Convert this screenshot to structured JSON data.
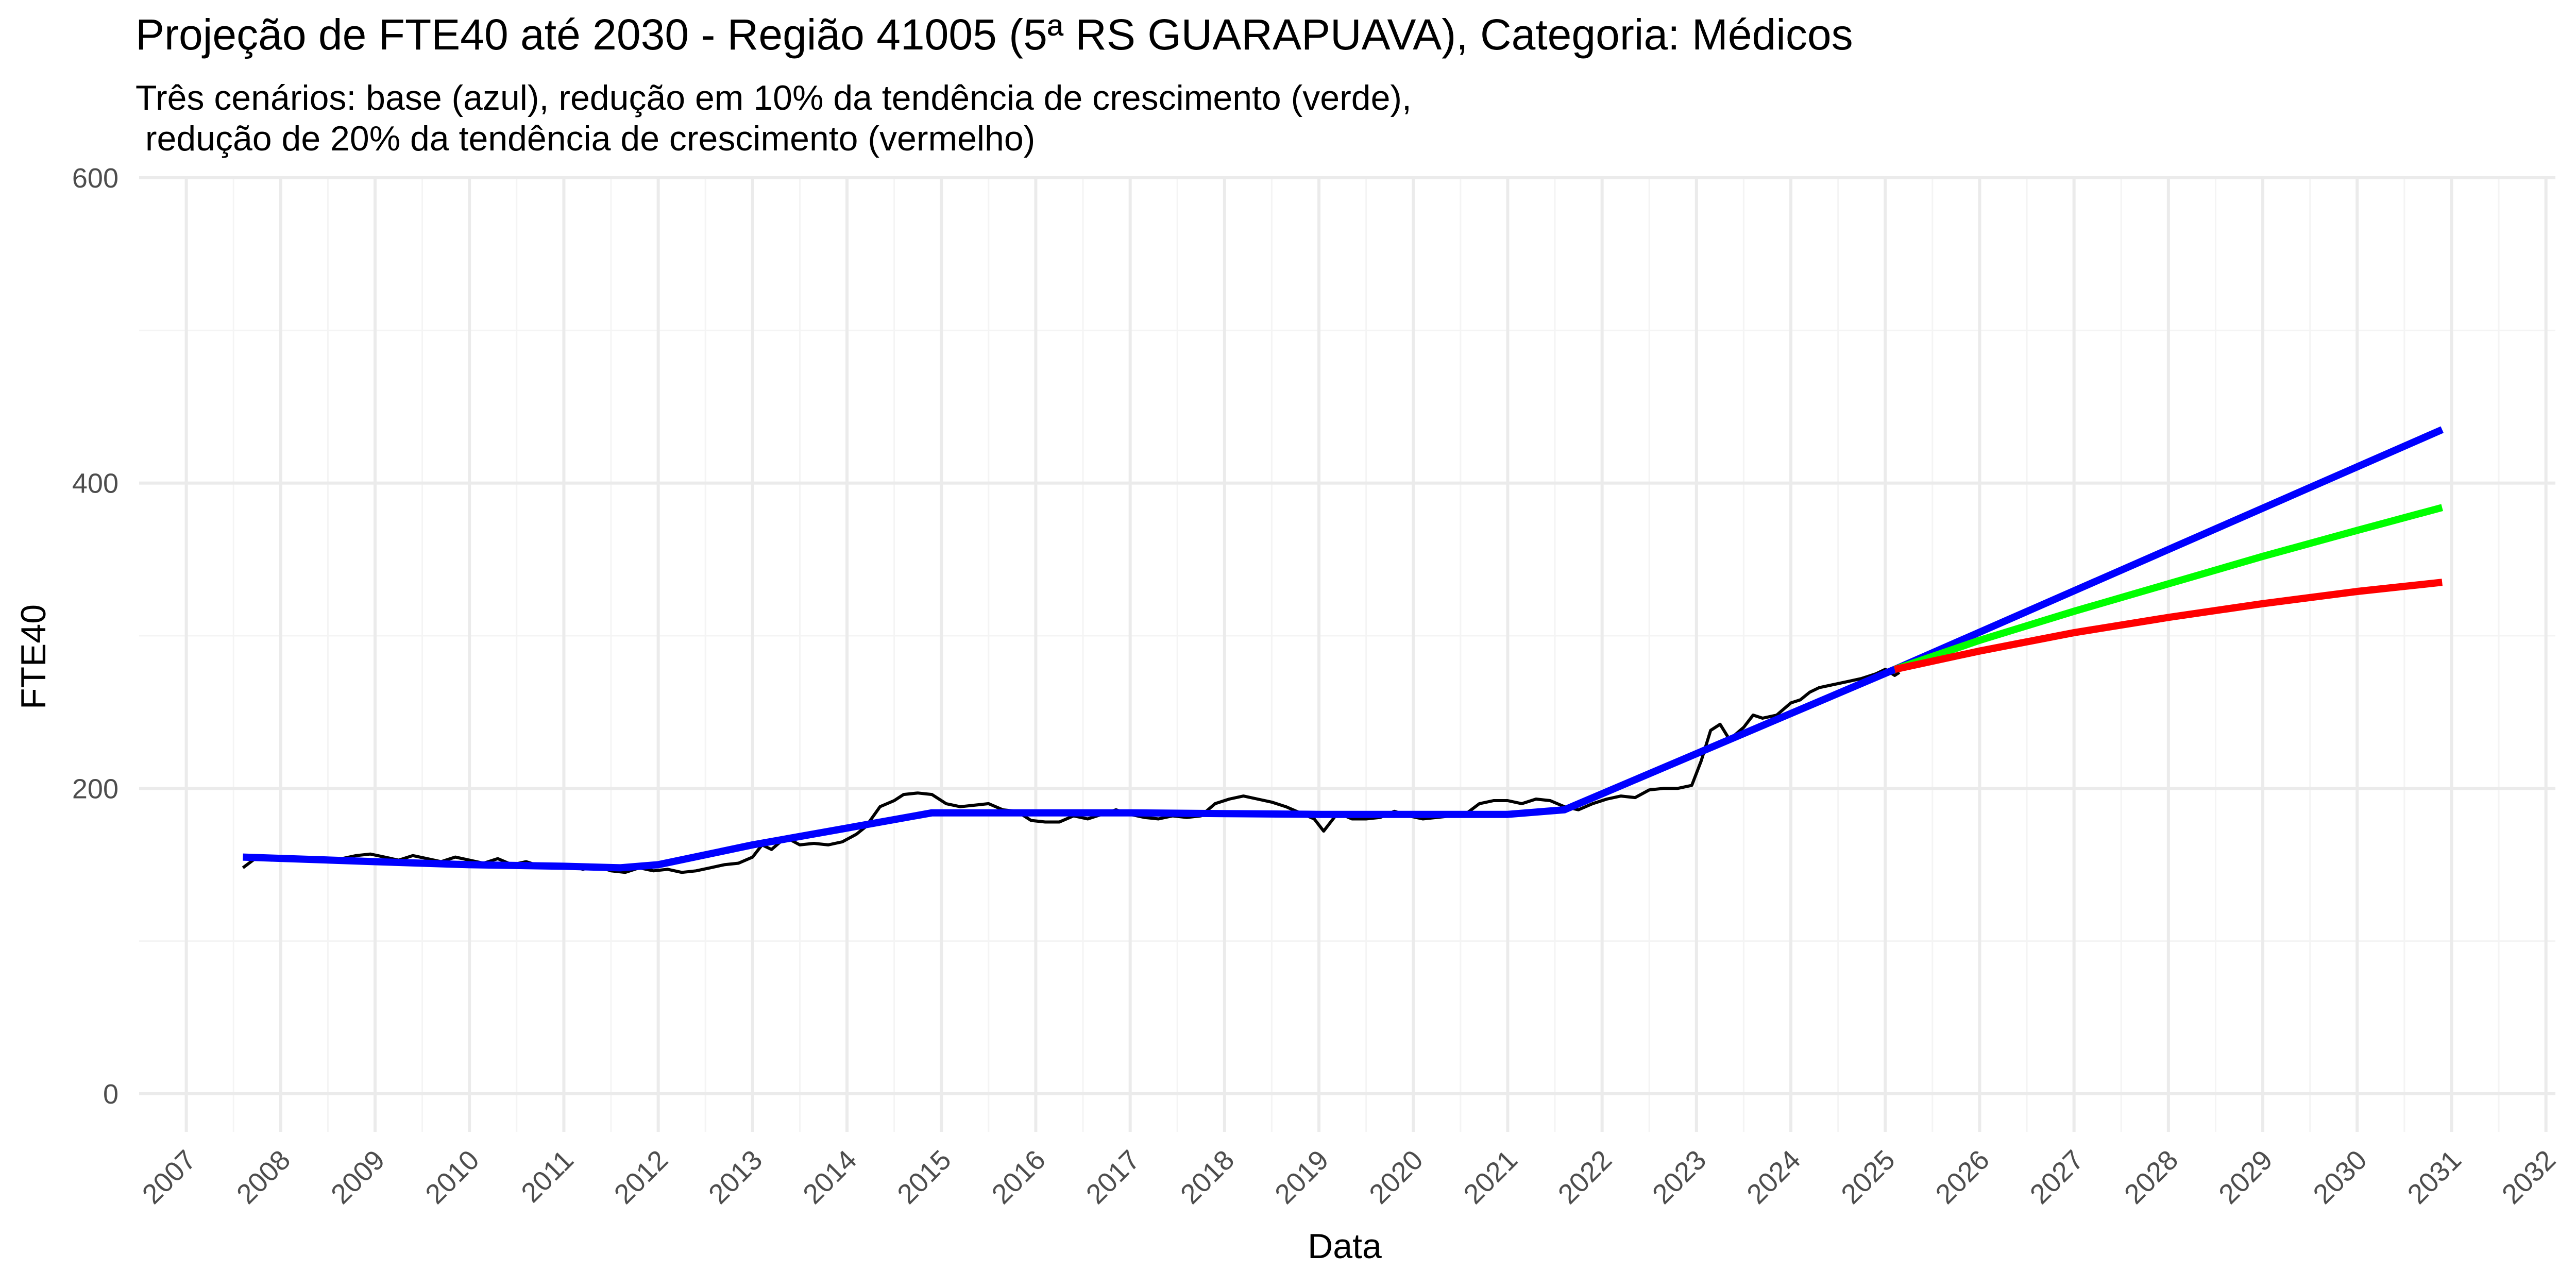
{
  "chart_data": {
    "type": "line",
    "title": "Projeção de FTE40 até 2030 - Região 41005 (5ª RS GUARAPUAVA), Categoria: Médicos",
    "subtitle_lines": [
      "Três cenários: base (azul), redução em 10% da tendência de crescimento (verde),",
      " redução de 20% da tendência de crescimento (vermelho)"
    ],
    "xlabel": "Data",
    "ylabel": "FTE40",
    "xlim": [
      2006.5,
      2032.1
    ],
    "ylim": [
      -25,
      600
    ],
    "y_ticks": [
      0,
      200,
      400,
      600
    ],
    "x_ticks": [
      2007,
      2008,
      2009,
      2010,
      2011,
      2012,
      2013,
      2014,
      2015,
      2016,
      2017,
      2018,
      2019,
      2020,
      2021,
      2022,
      2023,
      2024,
      2025,
      2026,
      2027,
      2028,
      2029,
      2030,
      2031,
      2032
    ],
    "grid": true,
    "legend": "none",
    "series": [
      {
        "color": "#000000",
        "points": [
          [
            2007.6,
            148
          ],
          [
            2007.75,
            155
          ],
          [
            2007.9,
            153
          ],
          [
            2008.05,
            155
          ],
          [
            2008.2,
            153
          ],
          [
            2008.35,
            154
          ],
          [
            2008.5,
            152
          ],
          [
            2008.65,
            154
          ],
          [
            2008.8,
            156
          ],
          [
            2008.95,
            157
          ],
          [
            2009.1,
            155
          ],
          [
            2009.25,
            153
          ],
          [
            2009.4,
            156
          ],
          [
            2009.55,
            154
          ],
          [
            2009.7,
            152
          ],
          [
            2009.85,
            155
          ],
          [
            2010.0,
            153
          ],
          [
            2010.15,
            151
          ],
          [
            2010.3,
            154
          ],
          [
            2010.45,
            150
          ],
          [
            2010.6,
            152
          ],
          [
            2010.75,
            149
          ],
          [
            2010.9,
            148
          ],
          [
            2011.05,
            150
          ],
          [
            2011.2,
            147
          ],
          [
            2011.35,
            149
          ],
          [
            2011.5,
            146
          ],
          [
            2011.65,
            145
          ],
          [
            2011.8,
            148
          ],
          [
            2011.95,
            146
          ],
          [
            2012.1,
            147
          ],
          [
            2012.25,
            145
          ],
          [
            2012.4,
            146
          ],
          [
            2012.55,
            148
          ],
          [
            2012.7,
            150
          ],
          [
            2012.85,
            151
          ],
          [
            2013.0,
            155
          ],
          [
            2013.1,
            163
          ],
          [
            2013.2,
            160
          ],
          [
            2013.35,
            168
          ],
          [
            2013.5,
            163
          ],
          [
            2013.65,
            164
          ],
          [
            2013.8,
            163
          ],
          [
            2013.95,
            165
          ],
          [
            2014.1,
            170
          ],
          [
            2014.2,
            175
          ],
          [
            2014.35,
            188
          ],
          [
            2014.5,
            192
          ],
          [
            2014.6,
            196
          ],
          [
            2014.75,
            197
          ],
          [
            2014.9,
            196
          ],
          [
            2015.05,
            190
          ],
          [
            2015.2,
            188
          ],
          [
            2015.35,
            189
          ],
          [
            2015.5,
            190
          ],
          [
            2015.65,
            186
          ],
          [
            2015.8,
            185
          ],
          [
            2015.95,
            179
          ],
          [
            2016.1,
            178
          ],
          [
            2016.25,
            178
          ],
          [
            2016.4,
            182
          ],
          [
            2016.55,
            180
          ],
          [
            2016.7,
            183
          ],
          [
            2016.85,
            186
          ],
          [
            2017.0,
            183
          ],
          [
            2017.15,
            181
          ],
          [
            2017.3,
            180
          ],
          [
            2017.45,
            182
          ],
          [
            2017.6,
            181
          ],
          [
            2017.75,
            182
          ],
          [
            2017.9,
            190
          ],
          [
            2018.05,
            193
          ],
          [
            2018.2,
            195
          ],
          [
            2018.35,
            193
          ],
          [
            2018.5,
            191
          ],
          [
            2018.65,
            188
          ],
          [
            2018.8,
            184
          ],
          [
            2018.95,
            180
          ],
          [
            2019.05,
            172
          ],
          [
            2019.2,
            184
          ],
          [
            2019.35,
            180
          ],
          [
            2019.5,
            180
          ],
          [
            2019.65,
            181
          ],
          [
            2019.8,
            185
          ],
          [
            2019.95,
            182
          ],
          [
            2020.1,
            180
          ],
          [
            2020.25,
            181
          ],
          [
            2020.4,
            182
          ],
          [
            2020.55,
            183
          ],
          [
            2020.7,
            190
          ],
          [
            2020.85,
            192
          ],
          [
            2021.0,
            192
          ],
          [
            2021.15,
            190
          ],
          [
            2021.3,
            193
          ],
          [
            2021.45,
            192
          ],
          [
            2021.6,
            188
          ],
          [
            2021.75,
            186
          ],
          [
            2021.9,
            190
          ],
          [
            2022.05,
            193
          ],
          [
            2022.2,
            195
          ],
          [
            2022.35,
            194
          ],
          [
            2022.5,
            199
          ],
          [
            2022.65,
            200
          ],
          [
            2022.8,
            200
          ],
          [
            2022.95,
            202
          ],
          [
            2023.05,
            218
          ],
          [
            2023.15,
            238
          ],
          [
            2023.25,
            242
          ],
          [
            2023.35,
            232
          ],
          [
            2023.5,
            240
          ],
          [
            2023.6,
            248
          ],
          [
            2023.7,
            246
          ],
          [
            2023.85,
            248
          ],
          [
            2024.0,
            256
          ],
          [
            2024.1,
            258
          ],
          [
            2024.2,
            263
          ],
          [
            2024.3,
            266
          ],
          [
            2024.45,
            268
          ],
          [
            2024.6,
            270
          ],
          [
            2024.75,
            272
          ],
          [
            2024.9,
            275
          ],
          [
            2025.0,
            278
          ],
          [
            2025.1,
            274
          ],
          [
            2025.15,
            276
          ]
        ]
      },
      {
        "color": "#0000ff",
        "points": [
          [
            2007.6,
            155
          ],
          [
            2009.0,
            152
          ],
          [
            2010.0,
            150
          ],
          [
            2011.0,
            149
          ],
          [
            2011.6,
            148
          ],
          [
            2012.0,
            150
          ],
          [
            2013.0,
            163
          ],
          [
            2014.0,
            174
          ],
          [
            2014.9,
            184
          ],
          [
            2016.0,
            184
          ],
          [
            2017.0,
            184
          ],
          [
            2018.0,
            183.5
          ],
          [
            2019.0,
            183
          ],
          [
            2020.0,
            183
          ],
          [
            2021.0,
            183
          ],
          [
            2021.6,
            186
          ],
          [
            2025.1,
            278
          ],
          [
            2030.9,
            435
          ]
        ]
      },
      {
        "color": "#00ff00",
        "points": [
          [
            2025.1,
            278
          ],
          [
            2026.0,
            297
          ],
          [
            2027.0,
            316
          ],
          [
            2028.0,
            334
          ],
          [
            2029.0,
            352
          ],
          [
            2030.0,
            369
          ],
          [
            2030.9,
            384
          ]
        ]
      },
      {
        "color": "#ff0000",
        "points": [
          [
            2025.1,
            278
          ],
          [
            2026.0,
            290
          ],
          [
            2027.0,
            302
          ],
          [
            2028.0,
            312
          ],
          [
            2029.0,
            321
          ],
          [
            2030.0,
            329
          ],
          [
            2030.9,
            335
          ]
        ]
      }
    ]
  }
}
